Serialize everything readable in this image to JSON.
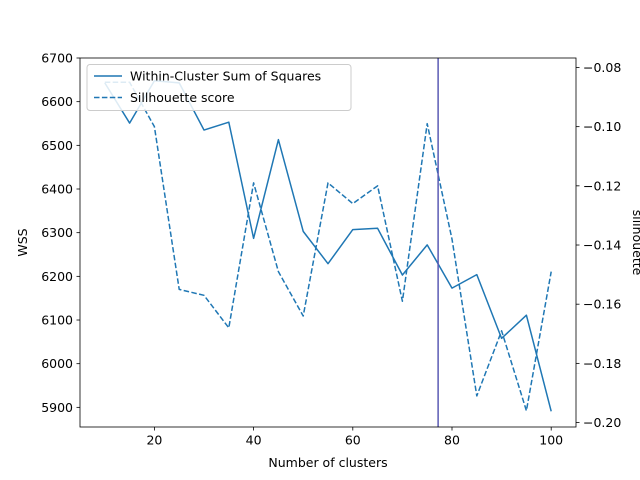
{
  "chart_data": {
    "type": "line",
    "xlabel": "Number of clusters",
    "ylabel_left": "WSS",
    "ylabel_right": "sillhouette",
    "x": [
      10,
      15,
      20,
      25,
      30,
      35,
      40,
      45,
      50,
      55,
      60,
      65,
      70,
      75,
      80,
      85,
      90,
      95,
      100
    ],
    "xlim": [
      5,
      105
    ],
    "xticks": [
      20,
      40,
      60,
      80,
      100
    ],
    "ylim_left": [
      5855,
      6700
    ],
    "yticks_left": [
      5900,
      6000,
      6100,
      6200,
      6300,
      6400,
      6500,
      6600,
      6700
    ],
    "ylim_right": [
      -0.2015,
      -0.0768
    ],
    "yticks_right": [
      -0.2,
      -0.18,
      -0.16,
      -0.14,
      -0.12,
      -0.1,
      -0.08
    ],
    "vline_x": 77.2,
    "vline_color": "#5a5ab4",
    "series": [
      {
        "name": "Within-Cluster Sum of Squares",
        "axis": "left",
        "style": "solid",
        "color": "#1f77b4",
        "values": [
          6643,
          6551,
          6648,
          6643,
          6535,
          6553,
          6287,
          6513,
          6303,
          6229,
          6307,
          6310,
          6203,
          6272,
          6173,
          6204,
          6058,
          6111,
          5891
        ]
      },
      {
        "name": "Sillhouette score",
        "axis": "right",
        "style": "dashed",
        "color": "#1f77b4",
        "values": [
          -0.085,
          -0.085,
          -0.1,
          -0.155,
          -0.157,
          -0.168,
          -0.119,
          -0.149,
          -0.164,
          -0.119,
          -0.126,
          -0.12,
          -0.159,
          -0.099,
          -0.138,
          -0.191,
          -0.169,
          -0.196,
          -0.149
        ]
      }
    ],
    "legend_position": "upper-left"
  }
}
